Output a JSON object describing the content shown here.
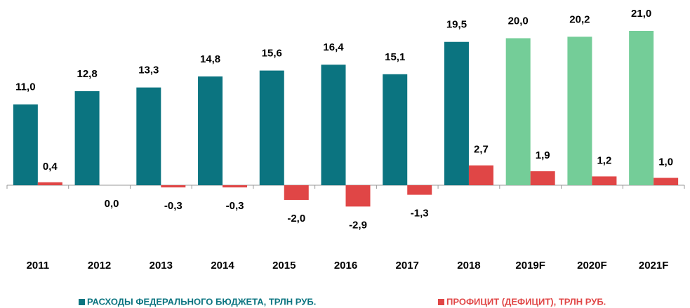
{
  "chart_data": {
    "type": "bar",
    "categories": [
      "2011",
      "2012",
      "2013",
      "2014",
      "2015",
      "2016",
      "2017",
      "2018",
      "2019F",
      "2020F",
      "2021F"
    ],
    "series": [
      {
        "name": "РАСХОДЫ ФЕДЕРАЛЬНОГО БЮДЖЕТА, ТРЛН РУБ.",
        "color": "#0b7480",
        "colors": [
          "#0b7480",
          "#0b7480",
          "#0b7480",
          "#0b7480",
          "#0b7480",
          "#0b7480",
          "#0b7480",
          "#0b7480",
          "#74cd98",
          "#74cd98",
          "#74cd98"
        ],
        "values": [
          11.0,
          12.8,
          13.3,
          14.8,
          15.6,
          16.4,
          15.1,
          19.5,
          20.0,
          20.2,
          21.0
        ],
        "value_labels": [
          "11,0",
          "12,8",
          "13,3",
          "14,8",
          "15,6",
          "16,4",
          "15,1",
          "19,5",
          "20,0",
          "20,2",
          "21,0"
        ]
      },
      {
        "name": "ПРОФИЦИТ (ДЕФИЦИТ), ТРЛН РУБ.",
        "color": "#e04646",
        "values": [
          0.4,
          0.0,
          -0.3,
          -0.3,
          -2.0,
          -2.9,
          -1.3,
          2.7,
          1.9,
          1.2,
          1.0
        ],
        "value_labels": [
          "0,4",
          "0,0",
          "-0,3",
          "-0,3",
          "-2,0",
          "-2,9",
          "-1,3",
          "2,7",
          "1,9",
          "1,2",
          "1,0"
        ]
      }
    ],
    "legend": "bottom"
  }
}
